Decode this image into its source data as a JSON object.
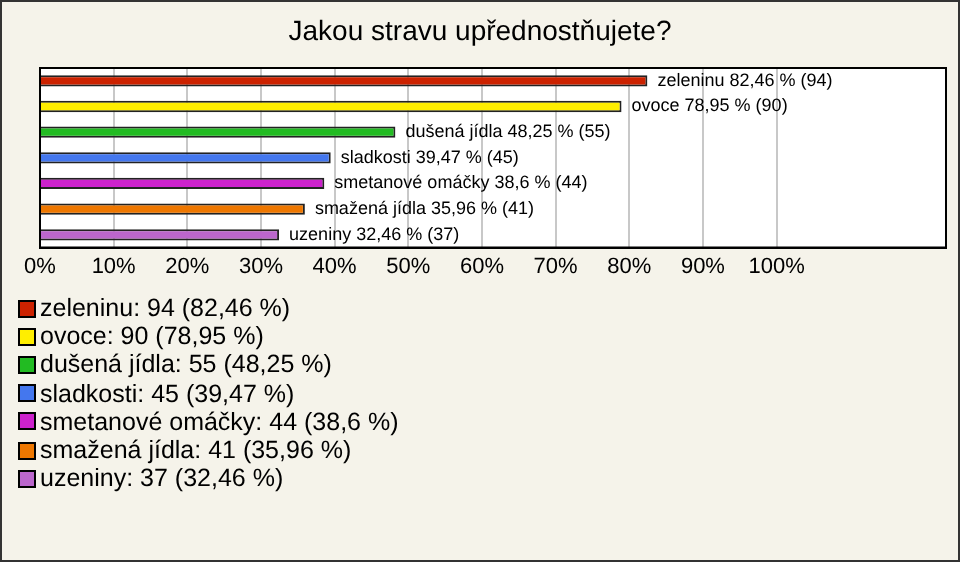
{
  "chart_data": {
    "type": "bar",
    "orientation": "horizontal",
    "title": "Jakou stravu upřednostňujete?",
    "categories": [
      null,
      null,
      null,
      null,
      null,
      null,
      null
    ],
    "values": [
      82.46,
      78.95,
      48.25,
      39.47,
      38.6,
      35.96,
      32.46
    ],
    "colors": [
      "#cc2200",
      "#ffee00",
      "#22bb22",
      "#4477ee",
      "#cc22cc",
      "#ee7700",
      "#bb66cc"
    ],
    "value_labels": [
      "zeleninu 82,46 % (94)",
      "ovoce 78,95 % (90)",
      "dušená jídla 48,25 % (55)",
      "sladkosti 39,47 % (45)",
      "smetanové omáčky 38,6 % (44)",
      "smažená jídla 35,96 % (41)",
      "uzeniny 32,46 % (37)"
    ],
    "xlim": [
      0,
      123
    ],
    "xticks": [
      {
        "value": 0,
        "label": "0%"
      },
      {
        "value": 10,
        "label": "10%"
      },
      {
        "value": 20,
        "label": "20%"
      },
      {
        "value": 30,
        "label": "30%"
      },
      {
        "value": 40,
        "label": "40%"
      },
      {
        "value": 50,
        "label": "50%"
      },
      {
        "value": 60,
        "label": "60%"
      },
      {
        "value": 70,
        "label": "70%"
      },
      {
        "value": 80,
        "label": "80%"
      },
      {
        "value": 90,
        "label": "90%"
      },
      {
        "value": 100,
        "label": "100%"
      }
    ],
    "grid": "x",
    "tick_labels": "x",
    "annotations": [
      "zeleninu: 94 (82,46 %)",
      "ovoce: 90 (78,95 %)",
      "dušená jídla: 55 (48,25 %)",
      "sladkosti: 45 (39,47 %)",
      "smetanové omáčky: 44 (38,6 %)",
      "smažená jídla: 41 (35,96 %)",
      "uzeniny: 37 (32,46 %)"
    ]
  }
}
